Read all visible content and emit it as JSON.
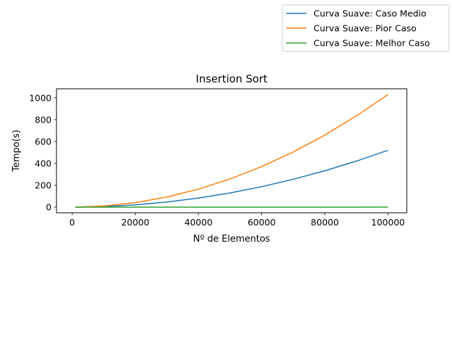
{
  "chart_data": {
    "type": "line",
    "title": "Insertion Sort",
    "xlabel": "Nº de Elementos",
    "ylabel": "Tempo(s)",
    "xlim": [
      -4950,
      105950
    ],
    "ylim": [
      -51.5,
      1082.5
    ],
    "xticks": [
      0,
      20000,
      40000,
      60000,
      80000,
      100000
    ],
    "xtick_labels": [
      "0",
      "20000",
      "40000",
      "60000",
      "80000",
      "100000"
    ],
    "yticks": [
      0,
      200,
      400,
      600,
      800,
      1000
    ],
    "ytick_labels": [
      "0",
      "200",
      "400",
      "600",
      "800",
      "1000"
    ],
    "grid": false,
    "legend_placement": "upper-right, outside plot area",
    "x": [
      1000,
      10000,
      20000,
      30000,
      40000,
      50000,
      60000,
      70000,
      80000,
      90000,
      100000
    ],
    "series": [
      {
        "name": "Curva Suave: Caso Medio",
        "color": "#1f77b4",
        "values": [
          0.05,
          5.2,
          20.8,
          46.8,
          83.2,
          130,
          187.2,
          254.8,
          332.8,
          421.2,
          520
        ]
      },
      {
        "name": "Curva Suave: Pior Caso",
        "color": "#ff7f0e",
        "values": [
          0.1,
          10.3,
          41.2,
          92.7,
          164.8,
          257.5,
          370.8,
          504.7,
          659.2,
          834.3,
          1030
        ]
      },
      {
        "name": "Curva Suave: Melhor Caso",
        "color": "#2ca02c",
        "values": [
          0.01,
          0.05,
          0.1,
          0.15,
          0.2,
          0.25,
          0.3,
          0.35,
          0.4,
          0.45,
          0.5
        ]
      }
    ]
  }
}
